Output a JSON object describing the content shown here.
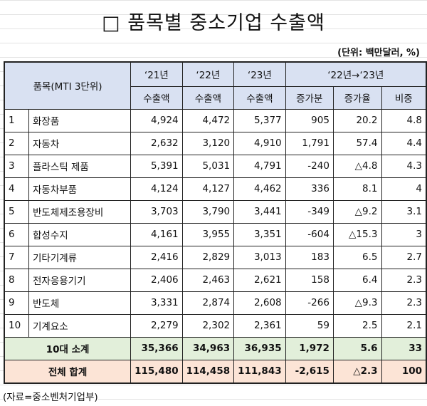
{
  "title": "□ 품목별 중소기업 수출액",
  "unit": "(단위: 백만달러, %)",
  "header": {
    "item": "품목(MTI 3단위)",
    "y21": "‘21년",
    "y22": "‘22년",
    "y23": "‘23년",
    "export": "수출액",
    "change_period": "‘22년→‘23년",
    "increase": "증가분",
    "growth": "증가율",
    "share": "비중"
  },
  "rows": [
    {
      "rank": "1",
      "item": "화장품",
      "y21": "4,924",
      "y22": "4,472",
      "y23": "5,377",
      "increase": "905",
      "growth": "20.2",
      "share": "4.8"
    },
    {
      "rank": "2",
      "item": "자동차",
      "y21": "2,632",
      "y22": "3,120",
      "y23": "4,910",
      "increase": "1,791",
      "growth": "57.4",
      "share": "4.4"
    },
    {
      "rank": "3",
      "item": "플라스틱 제품",
      "y21": "5,391",
      "y22": "5,031",
      "y23": "4,791",
      "increase": "-240",
      "growth": "△4.8",
      "share": "4.3"
    },
    {
      "rank": "4",
      "item": "자동차부품",
      "y21": "4,124",
      "y22": "4,127",
      "y23": "4,462",
      "increase": "336",
      "growth": "8.1",
      "share": "4"
    },
    {
      "rank": "5",
      "item": "반도체제조용장비",
      "y21": "3,703",
      "y22": "3,790",
      "y23": "3,441",
      "increase": "-349",
      "growth": "△9.2",
      "share": "3.1"
    },
    {
      "rank": "6",
      "item": "합성수지",
      "y21": "4,161",
      "y22": "3,955",
      "y23": "3,351",
      "increase": "-604",
      "growth": "△15.3",
      "share": "3"
    },
    {
      "rank": "7",
      "item": "기타기계류",
      "y21": "2,416",
      "y22": "2,829",
      "y23": "3,013",
      "increase": "183",
      "growth": "6.5",
      "share": "2.7"
    },
    {
      "rank": "8",
      "item": "전자응용기기",
      "y21": "2,406",
      "y22": "2,463",
      "y23": "2,621",
      "increase": "158",
      "growth": "6.4",
      "share": "2.3"
    },
    {
      "rank": "9",
      "item": "반도체",
      "y21": "3,331",
      "y22": "2,874",
      "y23": "2,608",
      "increase": "-266",
      "growth": "△9.3",
      "share": "2.3"
    },
    {
      "rank": "10",
      "item": "기계요소",
      "y21": "2,279",
      "y22": "2,302",
      "y23": "2,361",
      "increase": "59",
      "growth": "2.5",
      "share": "2.1"
    }
  ],
  "subtotal": {
    "label": "10대 소계",
    "y21": "35,366",
    "y22": "34,963",
    "y23": "36,935",
    "increase": "1,972",
    "growth": "5.6",
    "share": "33"
  },
  "total": {
    "label": "전체 합계",
    "y21": "115,480",
    "y22": "114,458",
    "y23": "111,843",
    "increase": "-2,615",
    "growth": "△2.3",
    "share": "100"
  },
  "colors": {
    "header_bg": "#d9e1f2",
    "subtotal_bg": "#e2efda",
    "total_bg": "#fce4d6"
  },
  "footer": "(자료=중소벤처기업부)"
}
